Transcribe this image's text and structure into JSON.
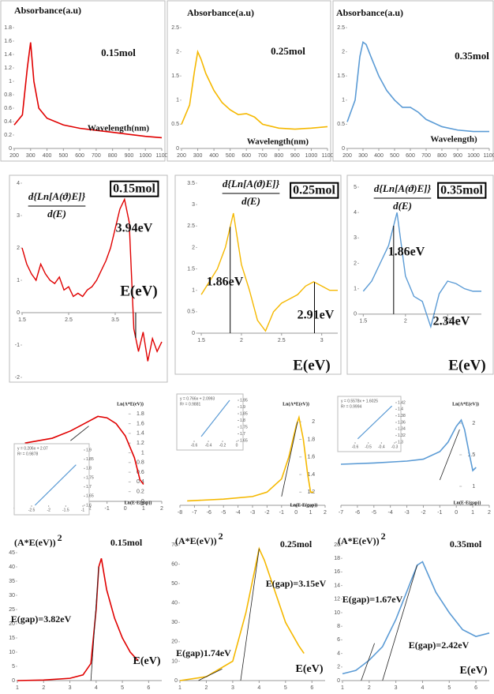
{
  "chart_data": [
    {
      "type": "line",
      "ylabel": "Absorbance(a.u)",
      "xlabel": "Wavelength(nm)",
      "annotations": [
        "0.15mol"
      ],
      "color": "#e00000",
      "x": [
        200,
        250,
        280,
        300,
        320,
        350,
        400,
        500,
        600,
        700,
        800,
        900,
        1000,
        1100
      ],
      "values": [
        0.35,
        0.5,
        1.2,
        1.58,
        1.0,
        0.6,
        0.45,
        0.35,
        0.3,
        0.27,
        0.24,
        0.21,
        0.18,
        0.16
      ],
      "xlim": [
        200,
        1100
      ],
      "xticks": [
        200,
        300,
        400,
        500,
        600,
        700,
        800,
        900,
        1000,
        1100
      ],
      "ylim": [
        0,
        1.8
      ],
      "yticks": [
        0,
        0.2,
        0.4,
        0.6,
        0.8,
        1,
        1.2,
        1.4,
        1.6,
        1.8
      ]
    },
    {
      "type": "line",
      "ylabel": "Absorbance(a.u)",
      "xlabel": "Wavelength(nm)",
      "annotations": [
        "0.25mol"
      ],
      "color": "#f5b800",
      "x": [
        200,
        250,
        280,
        300,
        320,
        350,
        400,
        450,
        500,
        550,
        600,
        650,
        700,
        800,
        900,
        1000,
        1100
      ],
      "values": [
        0.5,
        0.9,
        1.6,
        2.0,
        1.85,
        1.55,
        1.2,
        0.95,
        0.8,
        0.7,
        0.72,
        0.65,
        0.5,
        0.42,
        0.4,
        0.42,
        0.45
      ],
      "xlim": [
        200,
        1100
      ],
      "xticks": [
        200,
        300,
        400,
        500,
        600,
        700,
        800,
        900,
        1000,
        1100
      ],
      "ylim": [
        0,
        2.5
      ],
      "yticks": [
        0,
        0.5,
        1,
        1.5,
        2,
        2.5
      ]
    },
    {
      "type": "line",
      "ylabel": "Absorbance(a.u)",
      "xlabel": "Wavelength)",
      "annotations": [
        "0.35mol"
      ],
      "color": "#5b9bd5",
      "x": [
        200,
        250,
        280,
        300,
        320,
        350,
        400,
        450,
        500,
        550,
        600,
        650,
        700,
        800,
        900,
        1000,
        1100
      ],
      "values": [
        0.55,
        1.0,
        1.9,
        2.2,
        2.15,
        1.9,
        1.5,
        1.2,
        1.0,
        0.85,
        0.85,
        0.75,
        0.6,
        0.45,
        0.38,
        0.35,
        0.35
      ],
      "xlim": [
        200,
        1100
      ],
      "xticks": [
        200,
        300,
        400,
        500,
        600,
        700,
        800,
        900,
        1000,
        1100
      ],
      "ylim": [
        0,
        2.5
      ],
      "yticks": [
        0,
        0.5,
        1,
        1.5,
        2,
        2.5
      ]
    },
    {
      "type": "line",
      "ylabel": "d{Ln[A(ϑ)E]}",
      "ylabel_denominator": "d(E)",
      "annotations": [
        "0.15mol",
        "3.94eV",
        "E(eV)"
      ],
      "color": "#e00000",
      "x": [
        1.5,
        1.6,
        1.7,
        1.8,
        1.9,
        2.0,
        2.1,
        2.2,
        2.3,
        2.4,
        2.5,
        2.6,
        2.7,
        2.8,
        2.9,
        3.0,
        3.1,
        3.2,
        3.3,
        3.4,
        3.5,
        3.6,
        3.7,
        3.8,
        3.9,
        4.0,
        4.1,
        4.2,
        4.3,
        4.4,
        4.5
      ],
      "values": [
        2.0,
        1.5,
        1.2,
        1.0,
        1.5,
        1.2,
        1.0,
        0.9,
        1.1,
        0.7,
        0.8,
        0.5,
        0.6,
        0.5,
        0.7,
        0.8,
        1.0,
        1.3,
        1.6,
        2.0,
        2.6,
        3.2,
        3.5,
        2.8,
        -0.5,
        -1.2,
        -0.6,
        -1.5,
        -0.8,
        -1.2,
        -0.9
      ],
      "markers": [
        3.94
      ],
      "xlim": [
        1.5,
        4.5
      ],
      "xticks": [
        1.5,
        2.5,
        3.5
      ],
      "ylim": [
        -2,
        4
      ],
      "yticks": [
        -2,
        -1,
        0,
        1,
        2,
        3,
        4
      ]
    },
    {
      "type": "line",
      "ylabel": "d{Ln[A(ϑ)E]}",
      "ylabel_denominator": "d(E)",
      "annotations": [
        "0.25mol",
        "1.86eV",
        "2.91eV",
        "E(eV)"
      ],
      "color": "#f5b800",
      "x": [
        1.5,
        1.6,
        1.7,
        1.8,
        1.9,
        2.0,
        2.1,
        2.2,
        2.3,
        2.4,
        2.5,
        2.6,
        2.7,
        2.8,
        2.9,
        3.0,
        3.1,
        3.2
      ],
      "values": [
        0.9,
        1.2,
        1.5,
        2.0,
        2.8,
        1.6,
        1.0,
        0.3,
        0.05,
        0.5,
        0.7,
        0.8,
        0.9,
        1.1,
        1.2,
        1.1,
        1.0,
        1.0
      ],
      "markers": [
        1.86,
        2.91
      ],
      "xlim": [
        1.45,
        3.2
      ],
      "xticks": [
        1.5,
        2,
        2.5,
        3
      ],
      "ylim": [
        0,
        3.5
      ],
      "yticks": [
        0,
        0.5,
        1,
        1.5,
        2,
        2.5,
        3,
        3.5
      ]
    },
    {
      "type": "line",
      "ylabel": "d{Ln[A(ϑ)E]}",
      "ylabel_denominator": "d(E)",
      "annotations": [
        "0.35mol",
        "1.86eV",
        "2.34eV",
        "E(eV)"
      ],
      "color": "#5b9bd5",
      "x": [
        1.5,
        1.6,
        1.7,
        1.8,
        1.9,
        2.0,
        2.1,
        2.2,
        2.3,
        2.4,
        2.5,
        2.6,
        2.7,
        2.8,
        2.9
      ],
      "values": [
        0.9,
        1.3,
        2.0,
        2.7,
        4.0,
        1.5,
        0.7,
        0.5,
        -0.5,
        0.8,
        1.3,
        1.2,
        1.0,
        0.9,
        0.9
      ],
      "markers": [
        1.86,
        2.34
      ],
      "xlim": [
        1.45,
        2.9
      ],
      "xticks": [
        1.5,
        2,
        2.5
      ],
      "ylim": [
        -1,
        5
      ],
      "yticks": [
        0,
        1,
        2,
        3,
        4,
        5
      ]
    },
    {
      "type": "line",
      "ylabel": "Ln(A*E(eV))",
      "xlabel": "Ln(E-E(gap))",
      "color": "#e00000",
      "x": [
        -5.5,
        -4,
        -3,
        -2,
        -1.5,
        -1,
        -0.5,
        0,
        0.5,
        0.8,
        1
      ],
      "values": [
        1.2,
        1.3,
        1.45,
        1.65,
        1.75,
        1.72,
        1.6,
        1.35,
        0.9,
        0.45,
        0.35
      ],
      "tangents": [
        [
          [
            -3,
            1.25
          ],
          [
            -2,
            1.55
          ]
        ]
      ],
      "xlim": [
        -6,
        2
      ],
      "xticks": [
        -6,
        -5,
        -4,
        -3,
        -2,
        -1,
        0,
        1,
        2
      ],
      "ylim": [
        0,
        2
      ],
      "yticks": [
        0,
        0.2,
        0.4,
        0.6,
        0.8,
        1,
        1.2,
        1.4,
        1.6,
        1.8
      ],
      "inset": {
        "equation": "y = 0.206x + 2.07",
        "r_squared": "R² = 0.9878",
        "color": "#5b9bd5",
        "x": [
          -2.4,
          -1.2
        ],
        "values": [
          1.6,
          1.82
        ],
        "xlim": [
          -2.5,
          -1
        ],
        "xticks": [
          -2.5,
          -2,
          -1.5,
          -1
        ],
        "ylim": [
          1.6,
          1.9
        ],
        "yticks": [
          1.6,
          1.65,
          1.7,
          1.75,
          1.8,
          1.85,
          1.9
        ]
      }
    },
    {
      "type": "line",
      "ylabel": "Ln(A*E(eV))",
      "xlabel": "Ln(E-E(gap))",
      "color": "#f5b800",
      "x": [
        -7.5,
        -5,
        -3,
        -2,
        -1,
        -0.5,
        0,
        0.2,
        0.5,
        0.8,
        1,
        1.2
      ],
      "values": [
        1.1,
        1.12,
        1.15,
        1.2,
        1.35,
        1.6,
        1.95,
        2.05,
        1.8,
        1.4,
        1.2,
        1.2
      ],
      "tangents": [
        [
          [
            -1,
            1.15
          ],
          [
            0.1,
            2.0
          ]
        ]
      ],
      "xlim": [
        -8,
        2
      ],
      "xticks": [
        -8,
        -7,
        -6,
        -5,
        -4,
        -3,
        -2,
        -1,
        0,
        1,
        2
      ],
      "ylim": [
        1.05,
        2.2
      ],
      "yticks": [
        1.2,
        1.4,
        1.6,
        1.8,
        2
      ],
      "inset": {
        "equation": "y = 0.766x + 2.0993",
        "r_squared": "R² = 0.9881",
        "color": "#5b9bd5",
        "x": [
          -0.5,
          -0.1
        ],
        "values": [
          1.68,
          1.95
        ],
        "xlim": [
          -0.6,
          0
        ],
        "xticks": [
          -0.6,
          -0.4,
          -0.2,
          0
        ],
        "ylim": [
          1.65,
          1.95
        ],
        "yticks": [
          1.65,
          1.7,
          1.75,
          1.8,
          1.85,
          1.9,
          1.95
        ]
      }
    },
    {
      "type": "line",
      "ylabel": "Ln(A*E(eV))",
      "xlabel": "Ln(E-E(gap))",
      "color": "#5b9bd5",
      "x": [
        -7,
        -5,
        -3,
        -2,
        -1,
        -0.5,
        0,
        0.3,
        0.5,
        0.8,
        1,
        1.2
      ],
      "values": [
        1.35,
        1.37,
        1.4,
        1.43,
        1.55,
        1.7,
        1.95,
        2.05,
        1.9,
        1.5,
        1.25,
        1.3
      ],
      "tangents": [
        [
          [
            -1,
            1.1
          ],
          [
            0.2,
            1.9
          ]
        ]
      ],
      "xlim": [
        -7,
        2
      ],
      "xticks": [
        -7,
        -6,
        -5,
        -4,
        -3,
        -2,
        -1,
        0,
        1,
        2
      ],
      "ylim": [
        0.7,
        2.3
      ],
      "yticks": [
        1,
        1.5,
        2
      ],
      "inset": {
        "equation": "y = 0.5578x + 1.6025",
        "r_squared": "R² = 0.9994",
        "color": "#5b9bd5",
        "x": [
          -0.58,
          -0.32
        ],
        "values": [
          1.31,
          1.41
        ],
        "xlim": [
          -0.6,
          -0.3
        ],
        "xticks": [
          -0.6,
          -0.5,
          -0.4,
          -0.3
        ],
        "ylim": [
          1.3,
          1.42
        ],
        "yticks": [
          1.3,
          1.32,
          1.34,
          1.36,
          1.38,
          1.4,
          1.42
        ]
      }
    },
    {
      "type": "line",
      "ylabel": "(A*E(eV))",
      "ylabel_sup": "2",
      "annotations": [
        "0.15mol",
        "E(gap)=3.82eV",
        "E(eV)"
      ],
      "color": "#e00000",
      "x": [
        1,
        2,
        3,
        3.5,
        3.8,
        4,
        4.1,
        4.2,
        4.4,
        4.7,
        5,
        5.3,
        5.6
      ],
      "values": [
        0,
        0.2,
        0.8,
        2,
        6,
        25,
        40,
        43,
        32,
        22,
        15,
        10,
        7
      ],
      "tangents": [
        [
          [
            3.8,
            0
          ],
          [
            4.1,
            40
          ]
        ]
      ],
      "xlim": [
        1,
        6.5
      ],
      "xticks": [
        1,
        2,
        3,
        4,
        5,
        6
      ],
      "ylim": [
        0,
        45
      ],
      "yticks": [
        0,
        5,
        10,
        15,
        20,
        25,
        30,
        35,
        40,
        45
      ]
    },
    {
      "type": "line",
      "ylabel": "(A*E(eV))",
      "ylabel_sup": "2",
      "annotations": [
        "0.25mol",
        "E(gap)=3.15eV",
        "E(gap)1.74eV",
        "E(eV)"
      ],
      "color": "#f5b800",
      "x": [
        1,
        2,
        3,
        3.5,
        4,
        4.2,
        4.5,
        5,
        5.5,
        5.7
      ],
      "values": [
        0,
        2,
        10,
        35,
        68,
        62,
        50,
        30,
        18,
        14
      ],
      "tangents": [
        [
          [
            3.3,
            0
          ],
          [
            4,
            68
          ]
        ],
        [
          [
            1.7,
            0
          ],
          [
            2.6,
            6
          ]
        ]
      ],
      "xlim": [
        1,
        6.5
      ],
      "xticks": [
        1,
        2,
        3,
        4,
        5,
        6
      ],
      "ylim": [
        0,
        70
      ],
      "yticks": [
        0,
        10,
        20,
        30,
        40,
        50,
        60,
        70
      ]
    },
    {
      "type": "line",
      "ylabel": "(A*E(eV))",
      "ylabel_sup": "2",
      "annotations": [
        "0.35mol",
        "E(gap)=1.67eV",
        "E(gap)=2.42eV",
        "E(eV)"
      ],
      "color": "#5b9bd5",
      "x": [
        1,
        1.5,
        2,
        2.5,
        3,
        3.5,
        3.8,
        4,
        4.5,
        5,
        5.5,
        6,
        6.5
      ],
      "values": [
        1,
        1.5,
        3,
        5,
        9,
        14,
        17,
        17.5,
        13,
        10,
        7.5,
        6.5,
        7
      ],
      "tangents": [
        [
          [
            1.7,
            0
          ],
          [
            2.2,
            5.5
          ]
        ],
        [
          [
            2.5,
            0
          ],
          [
            3.8,
            17
          ]
        ]
      ],
      "xlim": [
        1,
        6.5
      ],
      "xticks": [
        1,
        2,
        3,
        4,
        5,
        6
      ],
      "ylim": [
        0,
        20
      ],
      "yticks": [
        0,
        2,
        4,
        6,
        8,
        10,
        12,
        14,
        16,
        18,
        20
      ]
    }
  ]
}
